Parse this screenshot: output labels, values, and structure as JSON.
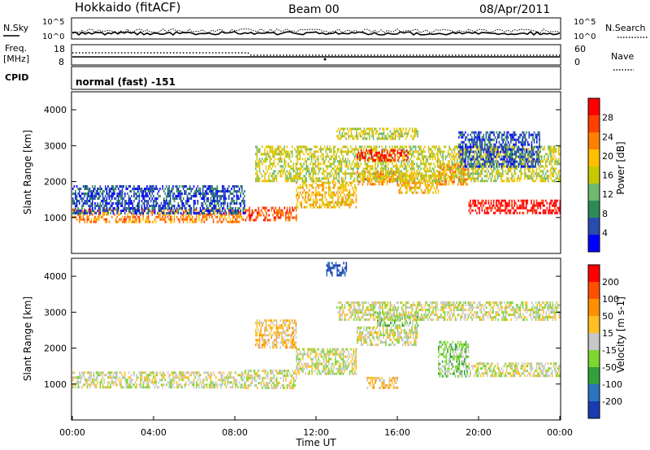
{
  "header": {
    "title": "Hokkaido (fitACF)",
    "beam": "Beam 00",
    "date": "08/Apr/2011"
  },
  "noise_panel": {
    "left_label": "N.Sky",
    "right_label": "N.Search",
    "ticks": [
      "10^5",
      "10^0"
    ]
  },
  "freq_panel": {
    "left_label_1": "Freq.",
    "left_label_2": "[MHz]",
    "left_ticks": [
      "18",
      "8"
    ],
    "right_label": "Nave",
    "right_ticks": [
      "60",
      "0"
    ]
  },
  "cpid": {
    "label": "CPID",
    "value": "normal (fast) -151"
  },
  "colors": {
    "power_scale": [
      "#0000ff",
      "#2a4cb0",
      "#2e8b57",
      "#6fb86f",
      "#c8c800",
      "#ffc000",
      "#ff8000",
      "#ff4000",
      "#ff0000"
    ],
    "velocity_scale": [
      "#1a3cb0",
      "#2b74c0",
      "#33a03c",
      "#7ed630",
      "#c8c8c8",
      "#ffc020",
      "#ff9000",
      "#ff5000",
      "#ff0000"
    ]
  },
  "chart_data": [
    {
      "type": "heatmap",
      "quantity": "power",
      "ylabel": "Slant Range [km]",
      "ylim": [
        0,
        4500
      ],
      "yticks": [
        1000,
        2000,
        3000,
        4000
      ],
      "xlim": [
        0,
        24
      ],
      "colorbar_label": "Power [dB]",
      "colorbar_ticks": [
        "28",
        "24",
        "20",
        "16",
        "12",
        "8",
        "4"
      ],
      "echo_bands": [
        {
          "t0": 0,
          "t1": 8.5,
          "r0": 900,
          "r1": 1250,
          "level": 6
        },
        {
          "t0": 8.5,
          "t1": 11,
          "r0": 900,
          "r1": 1300,
          "level": 7
        },
        {
          "t0": 11,
          "t1": 14,
          "r0": 1300,
          "r1": 2000,
          "level": 5
        },
        {
          "t0": 14,
          "t1": 16,
          "r0": 1900,
          "r1": 2300,
          "level": 6
        },
        {
          "t0": 16,
          "t1": 18,
          "r0": 1700,
          "r1": 2200,
          "level": 5
        },
        {
          "t0": 18,
          "t1": 19.5,
          "r0": 1900,
          "r1": 2500,
          "level": 6
        },
        {
          "t0": 19.5,
          "t1": 24,
          "r0": 1100,
          "r1": 1500,
          "level": 8
        },
        {
          "t0": 9,
          "t1": 24,
          "r0": 2000,
          "r1": 3000,
          "level": 4
        },
        {
          "t0": 14,
          "t1": 16.5,
          "r0": 2600,
          "r1": 2900,
          "level": 8
        },
        {
          "t0": 13,
          "t1": 17,
          "r0": 3200,
          "r1": 3500,
          "level": 4
        },
        {
          "t0": 0,
          "t1": 8.5,
          "r0": 1100,
          "r1": 1900,
          "level": 1
        },
        {
          "t0": 19,
          "t1": 23,
          "r0": 2400,
          "r1": 3400,
          "level": 1
        }
      ]
    },
    {
      "type": "heatmap",
      "quantity": "velocity",
      "ylabel": "Slant Range [km]",
      "ylim": [
        0,
        4500
      ],
      "yticks": [
        1000,
        2000,
        3000,
        4000
      ],
      "xlim": [
        0,
        24
      ],
      "xlabel": "Time UT",
      "xticks": [
        "00:00",
        "04:00",
        "08:00",
        "12:00",
        "16:00",
        "20:00",
        "00:00"
      ],
      "colorbar_label": "Velocity [m s-1]",
      "colorbar_ticks": [
        "200",
        "100",
        "50",
        "15",
        "-15",
        "-50",
        "-100",
        "-200"
      ],
      "echo_bands": [
        {
          "t0": 0,
          "t1": 8.5,
          "r0": 900,
          "r1": 1350,
          "level": 4
        },
        {
          "t0": 8.5,
          "t1": 11,
          "r0": 900,
          "r1": 1400,
          "level": 4
        },
        {
          "t0": 11,
          "t1": 14,
          "r0": 1300,
          "r1": 2000,
          "level": 4
        },
        {
          "t0": 9,
          "t1": 11,
          "r0": 2000,
          "r1": 2800,
          "level": 5
        },
        {
          "t0": 14,
          "t1": 17,
          "r0": 2100,
          "r1": 2600,
          "level": 4
        },
        {
          "t0": 15,
          "t1": 17,
          "r0": 2600,
          "r1": 3000,
          "level": 3
        },
        {
          "t0": 18,
          "t1": 19.5,
          "r0": 1200,
          "r1": 2200,
          "level": 3
        },
        {
          "t0": 19.5,
          "t1": 24,
          "r0": 1200,
          "r1": 1600,
          "level": 4
        },
        {
          "t0": 13,
          "t1": 24,
          "r0": 2800,
          "r1": 3300,
          "level": 4
        },
        {
          "t0": 14.5,
          "t1": 16,
          "r0": 900,
          "r1": 1200,
          "level": 5
        },
        {
          "t0": 12.5,
          "t1": 13.5,
          "r0": 4000,
          "r1": 4400,
          "level": 0
        }
      ]
    }
  ]
}
